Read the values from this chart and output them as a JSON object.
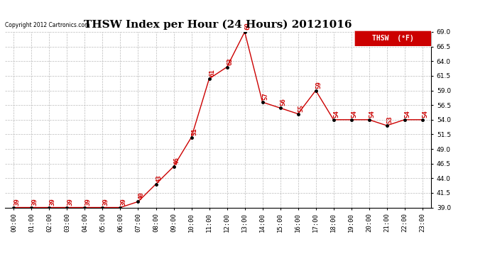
{
  "title": "THSW Index per Hour (24 Hours) 20121016",
  "copyright": "Copyright 2012 Cartronics.com",
  "legend_label": "THSW  (°F)",
  "hours": [
    "00:00",
    "01:00",
    "02:00",
    "03:00",
    "04:00",
    "05:00",
    "06:00",
    "07:00",
    "08:00",
    "09:00",
    "10:00",
    "11:00",
    "12:00",
    "13:00",
    "14:00",
    "15:00",
    "16:00",
    "17:00",
    "18:00",
    "19:00",
    "20:00",
    "21:00",
    "22:00",
    "23:00"
  ],
  "data_values": [
    39,
    39,
    39,
    39,
    39,
    39,
    39,
    40,
    43,
    46,
    51,
    61,
    63,
    69,
    57,
    56,
    55,
    59,
    54,
    54,
    54,
    53,
    54,
    54
  ],
  "ylim_min": 39.0,
  "ylim_max": 69.0,
  "yticks": [
    39.0,
    41.5,
    44.0,
    46.5,
    49.0,
    51.5,
    54.0,
    56.5,
    59.0,
    61.5,
    64.0,
    66.5,
    69.0
  ],
  "line_color": "#cc0000",
  "marker_color": "#000000",
  "grid_color": "#bbbbbb",
  "background_color": "#ffffff",
  "title_fontsize": 11,
  "label_fontsize": 6.5,
  "annotation_fontsize": 6.5,
  "legend_bg": "#cc0000",
  "legend_text_color": "#ffffff"
}
